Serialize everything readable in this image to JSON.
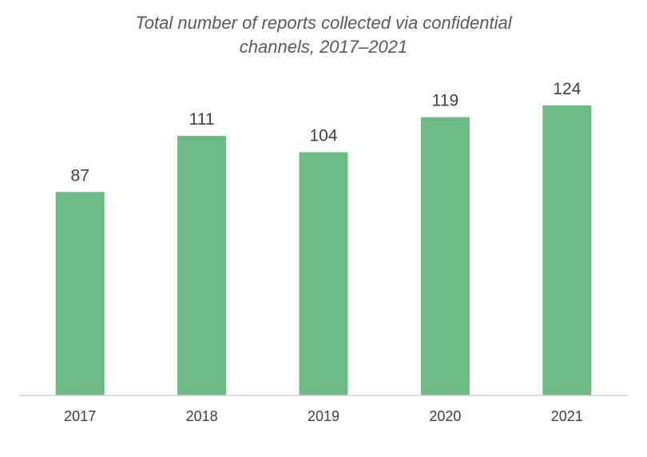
{
  "chart_data": {
    "type": "bar",
    "title_lines": [
      "Total number of reports collected via confidential",
      "channels, 2017–2021"
    ],
    "categories": [
      "2017",
      "2018",
      "2019",
      "2020",
      "2021"
    ],
    "values": [
      87,
      111,
      104,
      119,
      124
    ],
    "xlabel": "",
    "ylabel": "",
    "ylim": [
      0,
      124
    ],
    "grid": false,
    "legend": "none",
    "bar_color": "#6dba85",
    "data_labels": true
  }
}
